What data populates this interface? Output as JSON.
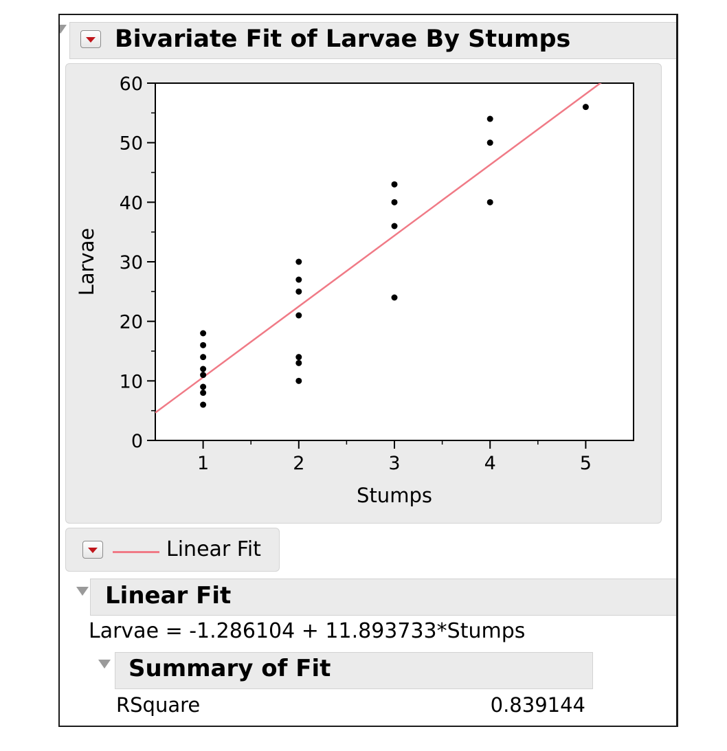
{
  "report": {
    "title": "Bivariate Fit of Larvae By Stumps"
  },
  "legend": {
    "label": "Linear Fit",
    "line_color": "#f07a86"
  },
  "linear_fit": {
    "title": "Linear Fit",
    "equation": "Larvae = -1.286104 + 11.893733*Stumps"
  },
  "summary_of_fit": {
    "title": "Summary of Fit",
    "rows": [
      {
        "label": "RSquare",
        "value": "0.839144"
      }
    ]
  },
  "chart_data": {
    "type": "scatter",
    "title": "Bivariate Fit of Larvae By Stumps",
    "xlabel": "Stumps",
    "ylabel": "Larvae",
    "xlim": [
      0.5,
      5.5
    ],
    "ylim": [
      0,
      60
    ],
    "xticks": [
      1,
      2,
      3,
      4,
      5
    ],
    "yticks": [
      0,
      10,
      20,
      30,
      40,
      50,
      60
    ],
    "grid": false,
    "point_color": "#000000",
    "series": [
      {
        "name": "Larvae",
        "points": [
          [
            1,
            6
          ],
          [
            1,
            8
          ],
          [
            1,
            9
          ],
          [
            1,
            11
          ],
          [
            1,
            12
          ],
          [
            1,
            14
          ],
          [
            1,
            16
          ],
          [
            1,
            18
          ],
          [
            2,
            10
          ],
          [
            2,
            13
          ],
          [
            2,
            14
          ],
          [
            2,
            21
          ],
          [
            2,
            25
          ],
          [
            2,
            27
          ],
          [
            2,
            30
          ],
          [
            3,
            24
          ],
          [
            3,
            36
          ],
          [
            3,
            40
          ],
          [
            3,
            43
          ],
          [
            4,
            40
          ],
          [
            4,
            50
          ],
          [
            4,
            54
          ],
          [
            5,
            56
          ]
        ]
      }
    ],
    "fit": {
      "name": "Linear Fit",
      "intercept": -1.286104,
      "slope": 11.893733,
      "color": "#f07a86"
    }
  }
}
